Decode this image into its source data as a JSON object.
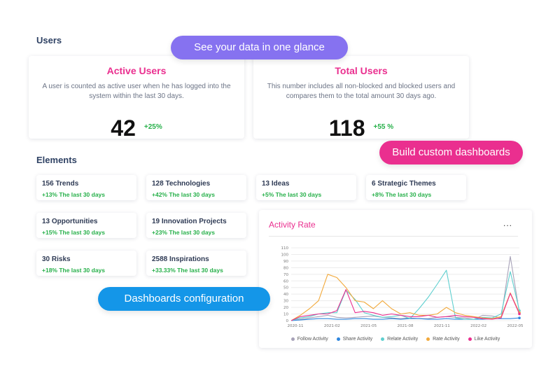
{
  "users": {
    "section_title": "Users",
    "active": {
      "title": "Active Users",
      "description": "A user is counted as active user when he has logged into the system within the last 30 days.",
      "value": "42",
      "change": "+25%"
    },
    "total": {
      "title": "Total Users",
      "description": "This number includes all non-blocked and blocked users and compares them to the total amount 30 days ago.",
      "value": "118",
      "change": "+55 %"
    }
  },
  "elements": {
    "section_title": "Elements",
    "cards": [
      {
        "title": "156 Trends",
        "change": "+13% The last 30 days"
      },
      {
        "title": "128 Technologies",
        "change": "+42% The last 30 days"
      },
      {
        "title": "13 Ideas",
        "change": "+5% The last 30 days"
      },
      {
        "title": "6 Strategic Themes",
        "change": "+8% The last 30 days"
      },
      {
        "title": "13 Opportunities",
        "change": "+15% The last 30 days"
      },
      {
        "title": "19 Innovation Projects",
        "change": "+23% The last 30 days"
      },
      {
        "title": "30 Risks",
        "change": "+18% The last 30 days"
      },
      {
        "title": "2588 Inspirations",
        "change": "+33.33% The last 30 days"
      }
    ]
  },
  "banners": {
    "glance": "See your data in one glance",
    "custom": "Build custom dashboards",
    "config": "Dashboards configuration"
  },
  "activity_chart": {
    "title": "Activity Rate",
    "menu": "..."
  },
  "colors": {
    "accent_pink": "#ea2f8f",
    "accent_purple": "#8672f0",
    "accent_blue": "#1496e8",
    "positive_green": "#27b04a"
  },
  "chart_data": {
    "type": "line",
    "title": "Activity Rate",
    "x_ticks": [
      "2020-11",
      "2021-02",
      "2021-05",
      "2021-08",
      "2021-11",
      "2022-02",
      "2022-05"
    ],
    "y_ticks": [
      0,
      10,
      20,
      30,
      40,
      50,
      60,
      70,
      80,
      90,
      100,
      110
    ],
    "ylim": [
      0,
      110
    ],
    "grid": true,
    "legend_position": "bottom",
    "series": [
      {
        "name": "Follow Activity",
        "color": "#a7a2b8",
        "values": [
          0,
          2,
          4,
          6,
          8,
          5,
          4,
          5,
          6,
          7,
          5,
          4,
          3,
          4,
          3,
          3,
          5,
          6,
          5,
          4,
          2,
          8,
          7,
          4,
          97,
          12
        ]
      },
      {
        "name": "Share Activity",
        "color": "#2e86de",
        "values": [
          0,
          1,
          2,
          3,
          3,
          2,
          2,
          3,
          3,
          2,
          2,
          3,
          2,
          3,
          3,
          2,
          2,
          3,
          2,
          2,
          2,
          2,
          3,
          3,
          3,
          4
        ]
      },
      {
        "name": "Relate Activity",
        "color": "#5ecfcf",
        "values": [
          0,
          4,
          6,
          10,
          12,
          12,
          46,
          32,
          12,
          8,
          5,
          6,
          8,
          3,
          18,
          35,
          55,
          76,
          4,
          2,
          2,
          5,
          4,
          10,
          74,
          15
        ]
      },
      {
        "name": "Rate Activity",
        "color": "#f2a93b",
        "values": [
          0,
          8,
          18,
          30,
          70,
          65,
          50,
          30,
          28,
          18,
          30,
          18,
          10,
          12,
          8,
          8,
          10,
          20,
          12,
          8,
          6,
          4,
          3,
          6,
          42,
          12
        ]
      },
      {
        "name": "Like Activity",
        "color": "#ea2f8f",
        "values": [
          0,
          6,
          8,
          10,
          10,
          15,
          47,
          12,
          14,
          12,
          8,
          10,
          8,
          6,
          6,
          8,
          5,
          6,
          8,
          6,
          5,
          3,
          2,
          4,
          41,
          10
        ]
      }
    ]
  }
}
